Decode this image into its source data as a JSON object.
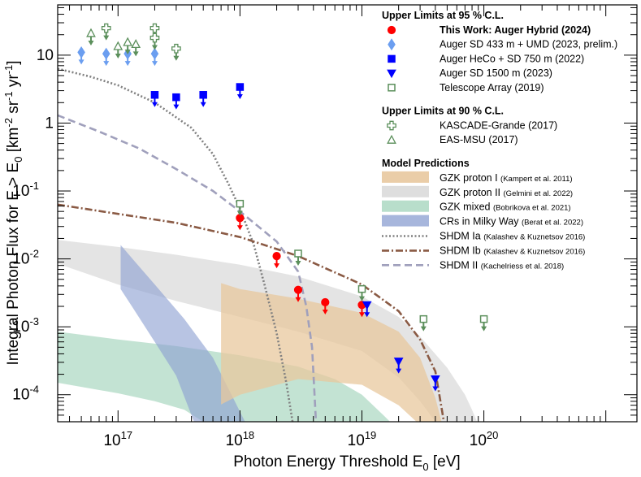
{
  "chart_data": {
    "type": "scatter",
    "xlabel_main": "Photon Energy Threshold E",
    "xlabel_sub": "0",
    "xlabel_unit": " [eV]",
    "ylabel_main": "Integral Photon Flux for E > E",
    "ylabel_sub": "0",
    "ylabel_unit": " [km",
    "ylabel_sup1": "-2",
    "ylabel_mid1": " sr",
    "ylabel_sup2": "-1",
    "ylabel_mid2": " yr",
    "ylabel_sup3": "-1",
    "ylabel_end": "]",
    "xlim": [
      3.2e+16,
      1.8e+21
    ],
    "ylim": [
      4e-05,
      55
    ],
    "x_scale": "log",
    "y_scale": "log",
    "x_ticks": [
      {
        "value": 1e+17,
        "base": "10",
        "exp": "17"
      },
      {
        "value": 1e+18,
        "base": "10",
        "exp": "18"
      },
      {
        "value": 1e+19,
        "base": "10",
        "exp": "19"
      },
      {
        "value": 1e+20,
        "base": "10",
        "exp": "20"
      }
    ],
    "y_ticks": [
      {
        "value": 10,
        "label": "10",
        "exp": ""
      },
      {
        "value": 1,
        "label": "1",
        "exp": ""
      },
      {
        "value": 0.1,
        "label": "10",
        "exp": "-1"
      },
      {
        "value": 0.01,
        "label": "10",
        "exp": "-2"
      },
      {
        "value": 0.001,
        "label": "10",
        "exp": "-3"
      },
      {
        "value": 0.0001,
        "label": "10",
        "exp": "-4"
      }
    ],
    "legend_groups": {
      "ul95": "Upper Limits at 95 % C.L.",
      "ul90": "Upper Limits at 90 % C.L.",
      "models": "Model Predictions"
    },
    "bands": [
      {
        "name": "GZK proton II",
        "cite": "(Gelmini et al. 2022)",
        "color": "#dcdcdc",
        "opacity": 0.78,
        "upper": [
          [
            3.2e+16,
            0.019
          ],
          [
            1e+17,
            0.015
          ],
          [
            3e+17,
            0.0115
          ],
          [
            1e+18,
            0.0082
          ],
          [
            3e+18,
            0.0055
          ],
          [
            1e+19,
            0.0028
          ],
          [
            2e+19,
            0.0014
          ],
          [
            3e+19,
            0.00072
          ],
          [
            5e+19,
            0.00025
          ],
          [
            7e+19,
            0.0001
          ],
          [
            8e+19,
            6e-05
          ],
          [
            8.8e+19,
            4e-05
          ]
        ],
        "lower": [
          [
            3.2e+16,
            0.0085
          ],
          [
            1e+17,
            0.0042
          ],
          [
            3e+17,
            0.0024
          ],
          [
            1e+18,
            0.0014
          ],
          [
            3e+18,
            0.00085
          ],
          [
            1e+19,
            0.00044
          ],
          [
            2e+19,
            0.00018
          ],
          [
            3e+19,
            8e-05
          ],
          [
            4e+19,
            4e-05
          ]
        ]
      },
      {
        "name": "GZK mixed",
        "cite": "(Bobrikova et al. 2021)",
        "color": "#b4dcc8",
        "opacity": 0.8,
        "upper": [
          [
            3.2e+16,
            0.00085
          ],
          [
            1e+17,
            0.00065
          ],
          [
            3e+17,
            0.00052
          ],
          [
            1e+18,
            0.00038
          ],
          [
            3e+18,
            0.00026
          ],
          [
            6e+18,
            0.00017
          ],
          [
            1e+19,
            0.0001
          ],
          [
            1.5e+19,
            5e-05
          ],
          [
            1.7e+19,
            4e-05
          ]
        ],
        "lower": [
          [
            3.2e+16,
            0.00015
          ],
          [
            1e+17,
            0.000105
          ],
          [
            2e+17,
            8e-05
          ],
          [
            3.5e+17,
            6e-05
          ],
          [
            5e+17,
            4e-05
          ]
        ]
      },
      {
        "name": "CRs in Milky Way",
        "cite": "(Berat et al. 2022)",
        "color": "#8ca0d2",
        "opacity": 0.62,
        "upper": [
          [
            1.05e+17,
            0.016
          ],
          [
            1.35e+17,
            0.0095
          ],
          [
            2e+17,
            0.0042
          ],
          [
            3.5e+17,
            0.0013
          ],
          [
            6e+17,
            0.00035
          ],
          [
            1.1e+18,
            4e-05
          ]
        ],
        "lower": [
          [
            1.05e+17,
            0.0036
          ],
          [
            1.35e+17,
            0.0018
          ],
          [
            2e+17,
            0.0006
          ],
          [
            3e+17,
            0.00019
          ],
          [
            4.2e+17,
            4e-05
          ]
        ]
      },
      {
        "name": "GZK proton I",
        "cite": "(Kampert et al. 2011)",
        "color": "#e8c89e",
        "opacity": 0.75,
        "upper": [
          [
            7e+17,
            0.0044
          ],
          [
            1e+18,
            0.0036
          ],
          [
            3e+18,
            0.0026
          ],
          [
            1e+19,
            0.0016
          ],
          [
            2e+19,
            0.00085
          ],
          [
            3e+19,
            0.00035
          ],
          [
            4e+19,
            9e-05
          ],
          [
            4.5e+19,
            4e-05
          ]
        ],
        "lower": [
          [
            7e+17,
            7.18e-05
          ],
          [
            1e+18,
            0.0001
          ],
          [
            3e+18,
            0.00017
          ],
          [
            1e+19,
            0.00014
          ],
          [
            2e+19,
            7e-05
          ],
          [
            2.8e+19,
            4e-05
          ]
        ]
      }
    ],
    "lines": [
      {
        "name": "SHDM Ia",
        "cite": "(Kalashev & Kuznetsov 2016)",
        "color": "#808080",
        "dash": "2,2.5",
        "points": [
          [
            3.2e+16,
            6.3
          ],
          [
            6e+16,
            4.8
          ],
          [
            1e+17,
            3.6
          ],
          [
            2e+17,
            2.0
          ],
          [
            4e+17,
            0.85
          ],
          [
            6e+17,
            0.35
          ],
          [
            8e+17,
            0.13
          ],
          [
            1e+18,
            0.055
          ],
          [
            1.3e+18,
            0.016
          ],
          [
            1.6e+18,
            0.004
          ],
          [
            2e+18,
            0.0008
          ],
          [
            2.4e+18,
            0.00015
          ],
          [
            2.7e+18,
            4e-05
          ]
        ]
      },
      {
        "name": "SHDM Ib",
        "cite": "(Kalashev & Kuznetsov 2016)",
        "color": "#8a5a44",
        "dash": "9,3,2,3",
        "points": [
          [
            3.2e+16,
            0.063
          ],
          [
            1e+17,
            0.046
          ],
          [
            3e+17,
            0.034
          ],
          [
            1e+18,
            0.021
          ],
          [
            3e+18,
            0.011
          ],
          [
            1e+19,
            0.0042
          ],
          [
            2e+19,
            0.0017
          ],
          [
            3e+19,
            0.00065
          ],
          [
            4e+19,
            0.00022
          ],
          [
            4.7e+19,
            4e-05
          ]
        ]
      },
      {
        "name": "SHDM II",
        "cite": "(Kachelriess et al. 2018)",
        "color": "#a0a0bc",
        "dash": "9,5",
        "points": [
          [
            3.2e+16,
            1.3
          ],
          [
            7e+16,
            0.75
          ],
          [
            1.5e+17,
            0.42
          ],
          [
            3e+17,
            0.21
          ],
          [
            6e+17,
            0.1
          ],
          [
            1e+18,
            0.05
          ],
          [
            2e+18,
            0.018
          ],
          [
            3e+18,
            0.0065
          ],
          [
            3.5e+18,
            0.002
          ],
          [
            3.9e+18,
            0.0005
          ],
          [
            4.2e+18,
            4e-05
          ]
        ]
      }
    ],
    "series": [
      {
        "name": "This Work: Auger Hybrid (2024)",
        "bold": true,
        "marker": "circle",
        "color": "#ff0000",
        "filled": true,
        "group": "ul95",
        "points": [
          [
            1e+18,
            0.04
          ],
          [
            2e+18,
            0.011
          ],
          [
            3e+18,
            0.0035
          ],
          [
            5e+18,
            0.0023
          ],
          [
            1e+19,
            0.0021
          ]
        ]
      },
      {
        "name": "Auger SD 433 m + UMD (2023, prelim.)",
        "marker": "diamond",
        "color": "#6b9ef0",
        "filled": true,
        "group": "ul95",
        "points": [
          [
            5e+16,
            11
          ],
          [
            8e+16,
            10.5
          ],
          [
            1.2e+17,
            10.5
          ],
          [
            2e+17,
            10.5
          ]
        ]
      },
      {
        "name": "Auger HeCo + SD 750 m (2022)",
        "marker": "square",
        "color": "#0000ff",
        "filled": true,
        "group": "ul95",
        "points": [
          [
            2e+17,
            2.6
          ],
          [
            3e+17,
            2.4
          ],
          [
            5e+17,
            2.6
          ],
          [
            1e+18,
            3.4
          ]
        ]
      },
      {
        "name": "Auger SD 1500 m (2023)",
        "marker": "triangle-down",
        "color": "#0000ff",
        "filled": true,
        "group": "ul95",
        "points": [
          [
            1.1e+19,
            0.0021
          ],
          [
            2e+19,
            0.00031
          ],
          [
            4e+19,
            0.00017
          ]
        ]
      },
      {
        "name": "Telescope Array (2019)",
        "marker": "square",
        "color": "#5b8f5b",
        "filled": false,
        "group": "ul95",
        "points": [
          [
            1e+18,
            0.065
          ],
          [
            3e+18,
            0.012
          ],
          [
            1e+19,
            0.0036
          ],
          [
            3.2e+19,
            0.0013
          ],
          [
            1e+20,
            0.0013
          ]
        ]
      },
      {
        "name": "KASCADE-Grande (2017)",
        "marker": "cross",
        "color": "#5b8f5b",
        "filled": false,
        "group": "ul90",
        "points": [
          [
            8e+16,
            25
          ],
          [
            2e+17,
            25
          ],
          [
            2e+17,
            18
          ],
          [
            3e+17,
            12.5
          ]
        ]
      },
      {
        "name": "EAS-MSU (2017)",
        "marker": "triangle-up",
        "color": "#5b8f5b",
        "filled": false,
        "group": "ul90",
        "points": [
          [
            6e+16,
            21
          ],
          [
            1e+17,
            13.5
          ],
          [
            1.2e+17,
            15.5
          ],
          [
            1.4e+17,
            14.5
          ]
        ]
      }
    ]
  }
}
